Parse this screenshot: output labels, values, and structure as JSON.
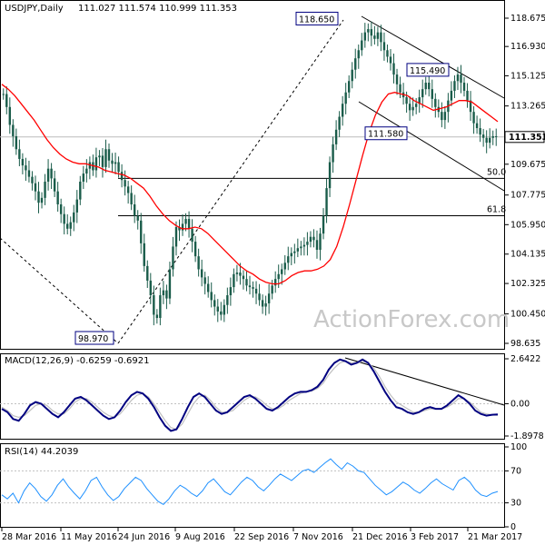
{
  "chart_data": {
    "type": "candlestick",
    "symbol_header": "USDJPY,Daily",
    "ohlc_header": "111.027 111.574 110.999 111.353",
    "watermark": "ActionForex.com",
    "price_axis": {
      "range": [
        98.635,
        118.6
      ],
      "ticks": [
        "118.675",
        "116.930",
        "115.125",
        "113.265",
        "111.353",
        "109.675",
        "107.775",
        "105.950",
        "104.135",
        "102.325",
        "100.450",
        "98.635"
      ],
      "last_price": "111.353"
    },
    "x_labels": [
      "28 Mar 2016",
      "11 May 2016",
      "24 Jun 2016",
      "9 Aug 2016",
      "22 Sep 2016",
      "7 Nov 2016",
      "21 Dec 2016",
      "3 Feb 2017",
      "21 Mar 2017"
    ],
    "price_annotations": [
      {
        "text": "118.650",
        "value": 118.65
      },
      {
        "text": "115.490",
        "value": 115.49
      },
      {
        "text": "111.580",
        "value": 111.58
      },
      {
        "text": "98.970",
        "value": 98.97
      }
    ],
    "fib_levels": [
      {
        "label": "50.0",
        "value": 108.8
      },
      {
        "label": "61.8",
        "value": 106.5
      }
    ],
    "closes": [
      114.0,
      113.2,
      112.1,
      111.4,
      110.6,
      110.0,
      109.6,
      109.3,
      108.9,
      108.5,
      108.0,
      107.3,
      107.6,
      108.6,
      109.4,
      108.8,
      108.0,
      107.2,
      106.6,
      106.0,
      105.7,
      106.1,
      106.7,
      107.5,
      108.6,
      109.1,
      109.4,
      109.8,
      109.3,
      110.1,
      110.2,
      109.5,
      110.6,
      109.9,
      109.7,
      109.8,
      109.2,
      108.7,
      108.3,
      107.9,
      107.2,
      106.5,
      106.2,
      104.8,
      103.4,
      102.5,
      101.6,
      100.4,
      100.2,
      101.6,
      101.9,
      101.4,
      103.2,
      104.6,
      105.8,
      105.6,
      106.0,
      106.3,
      105.7,
      104.9,
      104.0,
      103.2,
      102.7,
      102.3,
      101.8,
      101.3,
      100.9,
      100.6,
      100.4,
      101.0,
      101.6,
      102.1,
      102.9,
      103.0,
      102.8,
      102.6,
      102.2,
      102.1,
      102.0,
      101.7,
      101.3,
      100.9,
      101.1,
      101.7,
      102.2,
      102.6,
      102.9,
      103.2,
      103.6,
      104.0,
      104.2,
      104.3,
      104.5,
      104.6,
      104.7,
      104.9,
      105.2,
      105.0,
      104.4,
      105.4,
      106.5,
      108.2,
      109.8,
      110.9,
      111.8,
      112.6,
      113.4,
      114.1,
      114.8,
      115.5,
      116.2,
      116.7,
      117.3,
      117.8,
      118.0,
      117.6,
      117.4,
      117.8,
      117.2,
      116.7,
      116.3,
      115.9,
      115.2,
      114.6,
      114.1,
      113.8,
      113.4,
      113.0,
      113.2,
      113.4,
      113.8,
      114.3,
      114.7,
      114.3,
      113.7,
      113.2,
      112.9,
      112.4,
      112.9,
      113.6,
      114.2,
      114.8,
      115.2,
      114.7,
      114.2,
      113.6,
      112.9,
      112.2,
      111.9,
      111.5,
      111.3,
      111.0,
      111.3,
      111.4,
      111.35
    ],
    "ma_line": [
      114.6,
      114.3,
      113.9,
      113.4,
      112.9,
      112.4,
      111.8,
      111.2,
      110.7,
      110.3,
      110.0,
      109.8,
      109.7,
      109.7,
      109.6,
      109.5,
      109.3,
      109.2,
      109.1,
      109.0,
      108.8,
      108.5,
      108.2,
      107.7,
      107.1,
      106.6,
      106.2,
      105.9,
      105.7,
      105.7,
      105.8,
      105.7,
      105.4,
      105.0,
      104.6,
      104.2,
      103.8,
      103.4,
      103.1,
      102.9,
      102.6,
      102.4,
      102.3,
      102.3,
      102.5,
      102.8,
      103.0,
      103.1,
      103.1,
      103.2,
      103.4,
      103.8,
      104.6,
      105.8,
      107.2,
      108.7,
      110.2,
      111.6,
      112.7,
      113.5,
      114.0,
      114.1,
      114.0,
      113.9,
      113.6,
      113.4,
      113.2,
      113.0,
      113.1,
      113.2,
      113.4,
      113.6,
      113.6,
      113.5,
      113.2,
      112.9,
      112.6,
      112.3
    ],
    "channel_labels": [],
    "macd": {
      "header": "MACD(12,26,9) -0.6259 -0.6921",
      "ticks": [
        "2.6422",
        "0.00",
        "-1.8978"
      ],
      "range": [
        -1.8978,
        2.6422
      ],
      "values": [
        -0.3,
        -0.5,
        -0.9,
        -1.0,
        -0.6,
        -0.1,
        0.1,
        0.0,
        -0.3,
        -0.6,
        -0.8,
        -0.5,
        -0.1,
        0.3,
        0.4,
        0.2,
        -0.1,
        -0.4,
        -0.7,
        -0.9,
        -0.8,
        -0.4,
        0.1,
        0.5,
        0.7,
        0.6,
        0.3,
        -0.2,
        -0.8,
        -1.3,
        -1.6,
        -1.5,
        -0.9,
        -0.2,
        0.4,
        0.6,
        0.4,
        0.0,
        -0.4,
        -0.6,
        -0.5,
        -0.2,
        0.1,
        0.4,
        0.5,
        0.3,
        0.0,
        -0.3,
        -0.4,
        -0.2,
        0.1,
        0.4,
        0.6,
        0.7,
        0.7,
        0.8,
        1.0,
        1.4,
        2.0,
        2.4,
        2.6,
        2.5,
        2.3,
        2.4,
        2.6,
        2.4,
        1.9,
        1.3,
        0.7,
        0.2,
        -0.2,
        -0.3,
        -0.5,
        -0.6,
        -0.5,
        -0.3,
        -0.2,
        -0.3,
        -0.3,
        -0.1,
        0.2,
        0.5,
        0.3,
        0.0,
        -0.4,
        -0.6,
        -0.7,
        -0.65,
        -0.63
      ],
      "signal": [
        -0.2,
        -0.4,
        -0.7,
        -0.8,
        -0.7,
        -0.4,
        -0.1,
        0.0,
        -0.1,
        -0.4,
        -0.6,
        -0.6,
        -0.3,
        0.1,
        0.3,
        0.3,
        0.1,
        -0.2,
        -0.5,
        -0.7,
        -0.8,
        -0.6,
        -0.2,
        0.2,
        0.5,
        0.6,
        0.4,
        0.0,
        -0.5,
        -1.0,
        -1.4,
        -1.5,
        -1.2,
        -0.6,
        0.0,
        0.4,
        0.5,
        0.2,
        -0.2,
        -0.5,
        -0.5,
        -0.4,
        -0.1,
        0.2,
        0.4,
        0.4,
        0.2,
        -0.1,
        -0.3,
        -0.3,
        -0.1,
        0.2,
        0.4,
        0.6,
        0.7,
        0.75,
        0.9,
        1.2,
        1.7,
        2.1,
        2.4,
        2.5,
        2.4,
        2.4,
        2.5,
        2.4,
        2.1,
        1.6,
        1.0,
        0.5,
        0.1,
        -0.1,
        -0.3,
        -0.5,
        -0.5,
        -0.4,
        -0.3,
        -0.3,
        -0.3,
        -0.2,
        0.0,
        0.3,
        0.3,
        0.1,
        -0.2,
        -0.5,
        -0.6,
        -0.65,
        -0.69
      ]
    },
    "rsi": {
      "header": "RSI(14) 44.2039",
      "ticks": [
        "100",
        "70",
        "30",
        "0"
      ],
      "values": [
        40,
        35,
        42,
        30,
        45,
        55,
        48,
        38,
        32,
        40,
        52,
        60,
        50,
        42,
        35,
        45,
        58,
        62,
        50,
        40,
        33,
        38,
        48,
        55,
        62,
        58,
        48,
        40,
        32,
        28,
        35,
        45,
        52,
        48,
        42,
        38,
        45,
        55,
        60,
        52,
        44,
        40,
        48,
        56,
        62,
        58,
        50,
        45,
        52,
        60,
        66,
        62,
        58,
        64,
        70,
        72,
        68,
        74,
        80,
        85,
        78,
        72,
        80,
        76,
        70,
        68,
        60,
        52,
        46,
        40,
        44,
        50,
        56,
        52,
        46,
        42,
        48,
        55,
        60,
        54,
        50,
        46,
        58,
        62,
        56,
        46,
        40,
        38,
        42,
        44.2
      ]
    },
    "colors": {
      "ma": "#ff0000",
      "macd": "#000080",
      "signal": "#c0c0c0",
      "grid": "#c0c0c0",
      "candle": "#1a5c4a"
    }
  }
}
